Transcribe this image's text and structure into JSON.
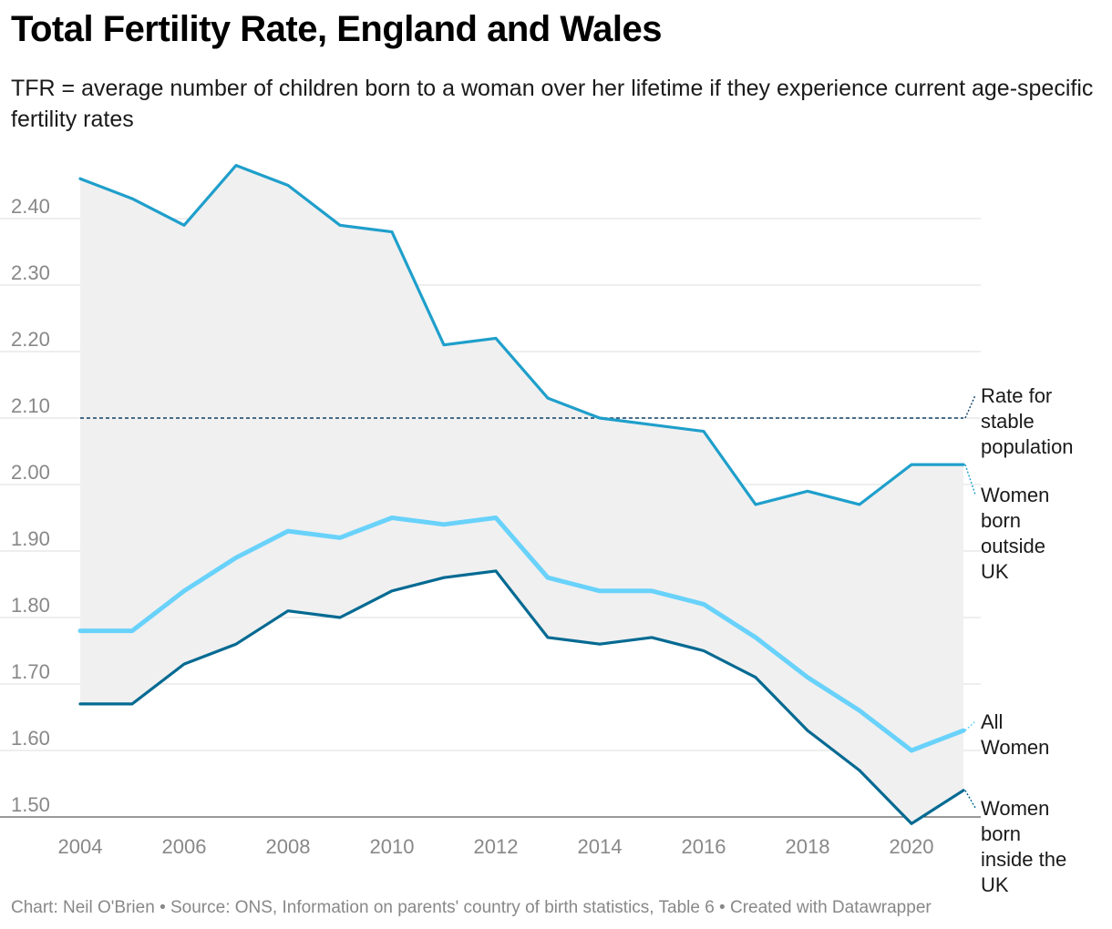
{
  "chart_data": {
    "type": "line",
    "title": "Total Fertility Rate, England and Wales",
    "subtitle": "TFR = average number of children born to a woman over her lifetime if they experience current age-specific fertility rates",
    "x": [
      2004,
      2005,
      2006,
      2007,
      2008,
      2009,
      2010,
      2011,
      2012,
      2013,
      2014,
      2015,
      2016,
      2017,
      2018,
      2019,
      2020,
      2021
    ],
    "x_ticks": [
      "2004",
      "2006",
      "2008",
      "2010",
      "2012",
      "2014",
      "2016",
      "2018",
      "2020"
    ],
    "y_ticks": [
      "2.40",
      "2.30",
      "2.20",
      "2.10",
      "2.00",
      "1.90",
      "1.80",
      "1.70",
      "1.60",
      "1.50"
    ],
    "ylim": [
      1.5,
      2.48
    ],
    "grid": true,
    "shaded_range_between": [
      "Women born outside UK",
      "Women born inside the UK"
    ],
    "series": [
      {
        "name": "Women born outside UK",
        "label_lines": [
          "Women",
          "born",
          "outside",
          "UK"
        ],
        "color": "#1f9fcb",
        "values": [
          2.46,
          2.43,
          2.39,
          2.48,
          2.45,
          2.39,
          2.38,
          2.21,
          2.22,
          2.13,
          2.1,
          2.09,
          2.08,
          1.97,
          1.99,
          1.97,
          2.03,
          2.03
        ]
      },
      {
        "name": "All Women",
        "label_lines": [
          "All",
          "Women"
        ],
        "color": "#69d2fb",
        "values": [
          1.78,
          1.78,
          1.84,
          1.89,
          1.93,
          1.92,
          1.95,
          1.94,
          1.95,
          1.86,
          1.84,
          1.84,
          1.82,
          1.77,
          1.71,
          1.66,
          1.6,
          1.63
        ]
      },
      {
        "name": "Women born inside the UK",
        "label_lines": [
          "Women",
          "born",
          "inside the",
          "UK"
        ],
        "color": "#046a92",
        "values": [
          1.67,
          1.67,
          1.73,
          1.76,
          1.81,
          1.8,
          1.84,
          1.86,
          1.87,
          1.77,
          1.76,
          1.77,
          1.75,
          1.71,
          1.63,
          1.57,
          1.49,
          1.54
        ]
      }
    ],
    "reference_line": {
      "value": 2.1,
      "label_lines": [
        "Rate for",
        "stable",
        "population"
      ],
      "color": "#0d3f66"
    }
  },
  "footer": "Chart: Neil O'Brien • Source: ONS, Information on parents' country of birth statistics, Table 6 • Created with Datawrapper"
}
